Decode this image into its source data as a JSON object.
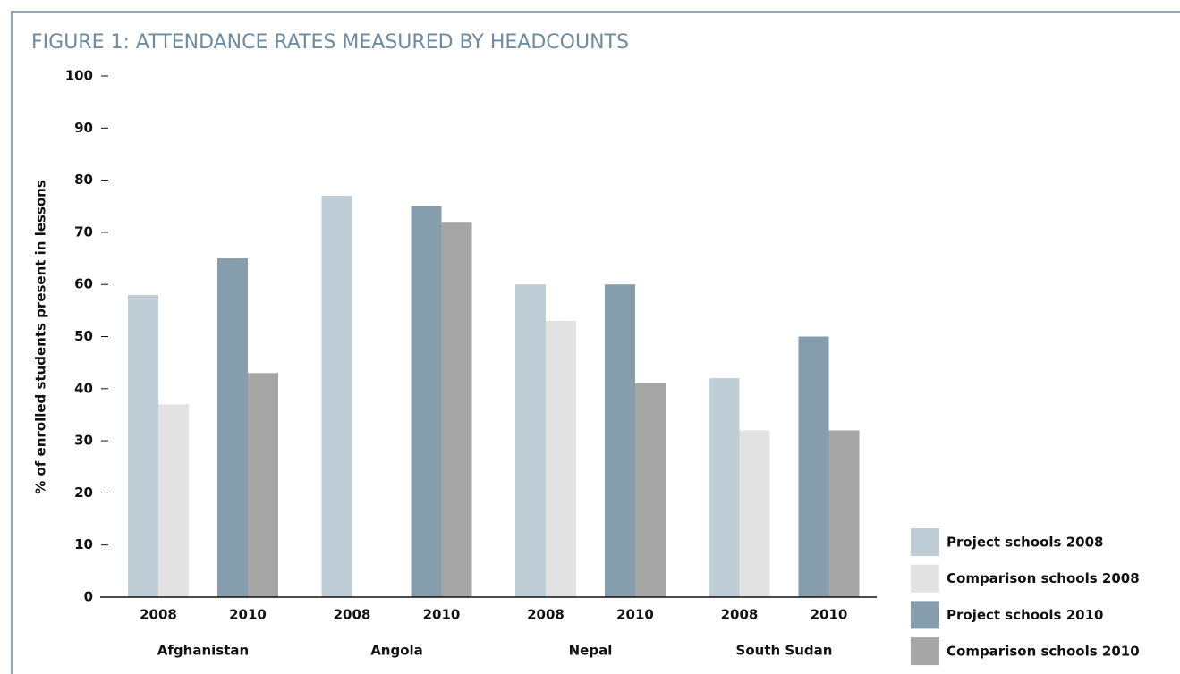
{
  "chart_data": {
    "type": "bar",
    "title": "FIGURE 1: ATTENDANCE RATES MEASURED BY HEADCOUNTS",
    "y_label": "% of enrolled students present in lessons",
    "groups": [
      "Afghanistan",
      "Angola",
      "Nepal",
      "South Sudan"
    ],
    "categories": [
      "2008",
      "2010",
      "2008",
      "2010",
      "2008",
      "2010",
      "2008",
      "2010"
    ],
    "series": [
      {
        "name": "Project schools 2008",
        "color": "#bfcdd6",
        "values": [
          58,
          null,
          77,
          null,
          60,
          null,
          42,
          null
        ]
      },
      {
        "name": "Comparison schools 2008",
        "color": "#e2e2e3",
        "values": [
          37,
          null,
          null,
          null,
          53,
          null,
          32,
          null
        ]
      },
      {
        "name": "Project schools 2010",
        "color": "#869dad",
        "values": [
          null,
          65,
          null,
          75,
          null,
          60,
          null,
          50
        ]
      },
      {
        "name": "Comparison schools 2010",
        "color": "#a6a6a6",
        "values": [
          null,
          43,
          null,
          72,
          null,
          41,
          null,
          32
        ]
      }
    ],
    "ylim": [
      0,
      100
    ],
    "yticks": [
      0,
      10,
      20,
      30,
      40,
      50,
      60,
      70,
      80,
      90,
      100
    ]
  }
}
